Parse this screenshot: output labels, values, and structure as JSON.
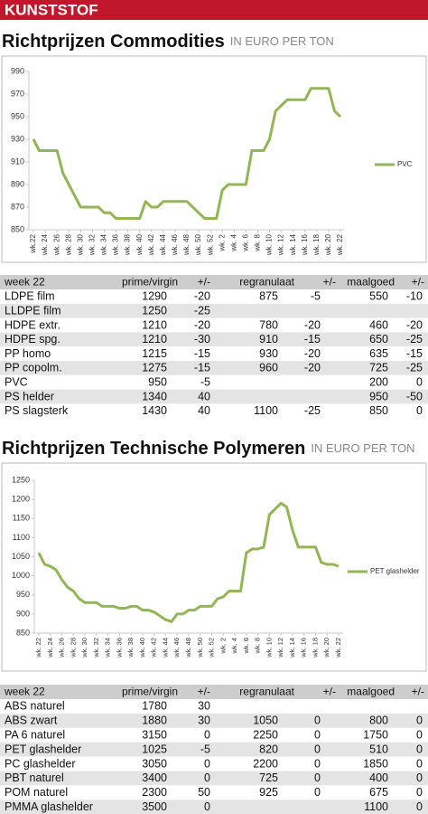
{
  "header": "KUNSTSTOF",
  "sections": [
    {
      "title": "Richtprijzen Commodities",
      "subtitle": "IN EURO PER TON",
      "table": {
        "columns": [
          "week 22",
          "prime/virgin",
          "+/-",
          "regranulaat",
          "+/-",
          "maalgoed",
          "+/-"
        ],
        "rows": [
          [
            "LDPE film",
            1290,
            -20,
            875,
            -5,
            550,
            -10
          ],
          [
            "LLDPE film",
            1250,
            -25,
            null,
            null,
            null,
            null
          ],
          [
            "HDPE extr.",
            1210,
            -20,
            780,
            -20,
            460,
            -20
          ],
          [
            "HDPE spg.",
            1210,
            -30,
            910,
            -15,
            650,
            -25
          ],
          [
            "PP homo",
            1215,
            -15,
            930,
            -20,
            635,
            -15
          ],
          [
            "PP copolm.",
            1275,
            -15,
            960,
            -20,
            725,
            -25
          ],
          [
            "PVC",
            950,
            -5,
            null,
            null,
            200,
            0
          ],
          [
            "PS helder",
            1340,
            40,
            null,
            null,
            950,
            -50
          ],
          [
            "PS slagsterk",
            1430,
            40,
            1100,
            -25,
            850,
            0
          ]
        ]
      }
    },
    {
      "title": "Richtprijzen Technische Polymeren",
      "subtitle": "IN EURO PER TON",
      "table": {
        "columns": [
          "week 22",
          "prime/virgin",
          "+/-",
          "regranulaat",
          "+/-",
          "maalgoed",
          "+/-"
        ],
        "rows": [
          [
            "ABS naturel",
            1780,
            30,
            null,
            null,
            null,
            null
          ],
          [
            "ABS zwart",
            1880,
            30,
            1050,
            0,
            800,
            0
          ],
          [
            "PA 6 naturel",
            3150,
            0,
            2250,
            0,
            1750,
            0
          ],
          [
            "PET glashelder",
            1025,
            -5,
            820,
            0,
            510,
            0
          ],
          [
            "PC glashelder",
            3050,
            0,
            2200,
            0,
            1850,
            0
          ],
          [
            "PBT naturel",
            3400,
            0,
            725,
            0,
            400,
            0
          ],
          [
            "POM naturel",
            2300,
            50,
            925,
            0,
            675,
            0
          ],
          [
            "PMMA glashelder",
            3500,
            0,
            null,
            null,
            1100,
            0
          ]
        ]
      }
    }
  ],
  "chart_data": [
    {
      "type": "line",
      "grid": false,
      "legend": "right",
      "categories": [
        "wk.22",
        null,
        "wk. 24",
        null,
        "wk. 26",
        null,
        "wk. 28",
        null,
        "wk. 30",
        null,
        "wk. 32",
        null,
        "wk. 34",
        null,
        "wk. 36",
        null,
        "wk. 38",
        null,
        "wk. 40",
        null,
        "wk. 42",
        null,
        "wk. 44",
        null,
        "wk. 46",
        null,
        "wk. 48",
        null,
        "wk. 50",
        null,
        "wk. 52",
        null,
        "wk. 2",
        null,
        "wk. 4",
        null,
        "wk. 6",
        null,
        "wk. 8",
        null,
        "wk. 10",
        null,
        "wk. 12",
        null,
        "wk. 14",
        null,
        "wk. 16",
        null,
        "wk. 18",
        null,
        "wk. 20",
        null,
        "wk. 22"
      ],
      "series": [
        {
          "name": "PVC",
          "color": "#92b653",
          "values": [
            930,
            920,
            920,
            920,
            920,
            900,
            890,
            880,
            870,
            870,
            870,
            870,
            865,
            865,
            860,
            860,
            860,
            860,
            860,
            875,
            870,
            870,
            875,
            875,
            875,
            875,
            875,
            870,
            865,
            860,
            860,
            860,
            885,
            890,
            890,
            890,
            890,
            920,
            920,
            920,
            930,
            955,
            960,
            965,
            965,
            965,
            965,
            975,
            975,
            975,
            975,
            955,
            950
          ]
        }
      ],
      "ylim": [
        850,
        990
      ],
      "yticks": [
        850,
        870,
        890,
        910,
        930,
        950,
        970,
        990
      ]
    },
    {
      "type": "line",
      "grid": false,
      "legend": "right",
      "categories": [
        "wk. 22",
        null,
        "wk. 24",
        null,
        "wk. 26",
        null,
        "wk. 28",
        null,
        "wk. 30",
        null,
        "wk. 32",
        null,
        "wk. 34",
        null,
        "wk. 36",
        null,
        "wk. 38",
        null,
        "wk. 40",
        null,
        "wk. 42",
        null,
        "wk. 44",
        null,
        "wk. 46",
        null,
        "wk. 48",
        null,
        "wk. 50",
        null,
        "wk. 52",
        null,
        "wk. 2",
        null,
        "wk. 4",
        null,
        "wk. 6",
        null,
        "wk. 8",
        null,
        "wk. 10",
        null,
        "wk. 12",
        null,
        "wk. 14",
        null,
        "wk. 16",
        null,
        "wk. 18",
        null,
        "wk. 20",
        null,
        "wk. 22"
      ],
      "series": [
        {
          "name": "PET glashelder",
          "color": "#92b653",
          "values": [
            1060,
            1030,
            1025,
            1015,
            990,
            970,
            960,
            940,
            930,
            930,
            930,
            920,
            920,
            920,
            915,
            915,
            920,
            920,
            910,
            910,
            905,
            895,
            885,
            880,
            900,
            900,
            910,
            910,
            920,
            920,
            920,
            940,
            945,
            960,
            960,
            960,
            1060,
            1070,
            1070,
            1075,
            1160,
            1175,
            1190,
            1180,
            1120,
            1075,
            1075,
            1075,
            1075,
            1035,
            1030,
            1030,
            1025
          ]
        }
      ],
      "ylim": [
        850,
        1250
      ],
      "yticks": [
        850,
        900,
        950,
        1000,
        1050,
        1100,
        1150,
        1200,
        1250
      ]
    }
  ]
}
